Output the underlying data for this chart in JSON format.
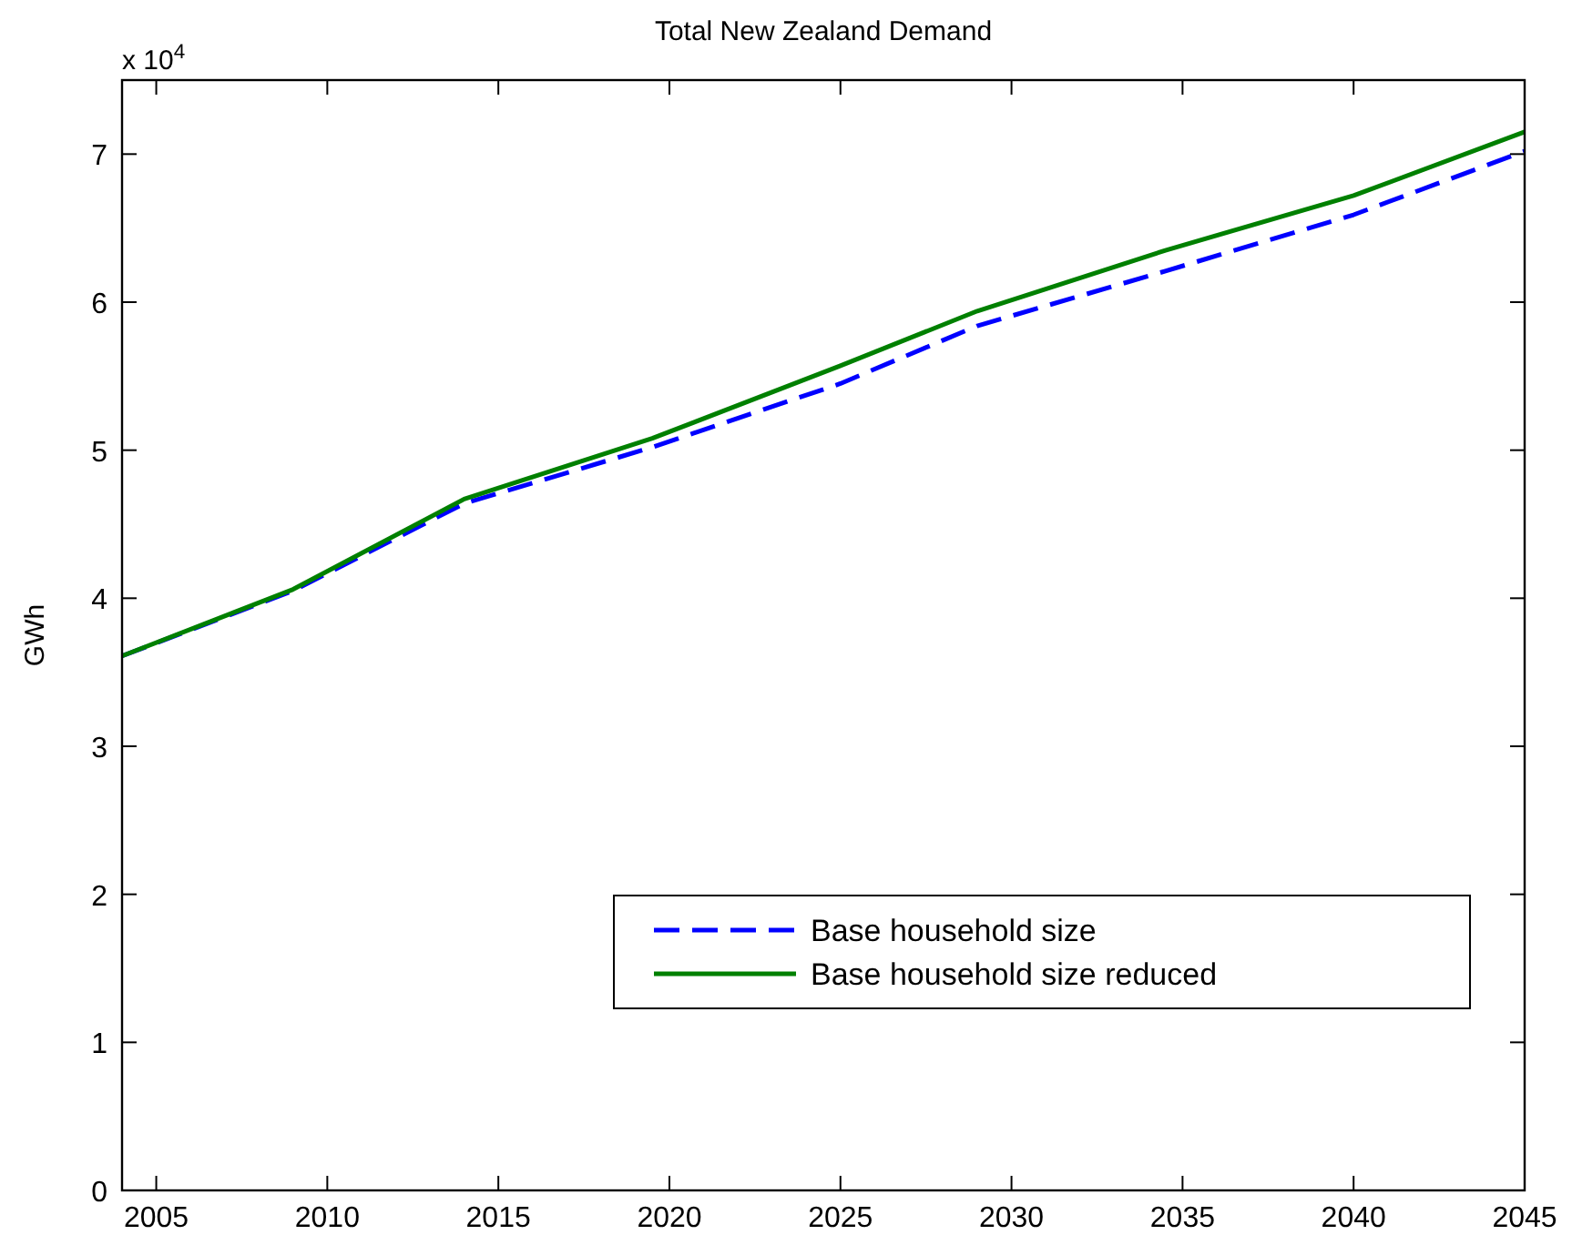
{
  "chart_data": {
    "type": "line",
    "title": "Total New Zealand Demand",
    "ylabel": "GWh",
    "annotations": [
      "x 10$^{4}$"
    ],
    "x": [
      2004,
      2009,
      2014,
      2019.5,
      2025,
      2029,
      2034.5,
      2040,
      2045
    ],
    "xlim": [
      2004,
      2045
    ],
    "xticks": [
      2005,
      2010,
      2015,
      2020,
      2025,
      2030,
      2035,
      2040,
      2045
    ],
    "ylim": [
      0,
      7.5
    ],
    "yticks": [
      0,
      1,
      2,
      3,
      4,
      5,
      6,
      7
    ],
    "series": [
      {
        "name": "Base household size",
        "color": "#0000ff",
        "line_style": "dashed",
        "values": [
          3.61,
          4.05,
          4.64,
          5.02,
          5.45,
          5.84,
          6.21,
          6.59,
          7.02
        ]
      },
      {
        "name": "Base household size reduced",
        "color": "#008000",
        "line_style": "solid",
        "values": [
          3.61,
          4.06,
          4.67,
          5.08,
          5.57,
          5.94,
          6.35,
          6.72,
          7.15
        ]
      }
    ],
    "grid": false,
    "legend": "bottom right"
  }
}
